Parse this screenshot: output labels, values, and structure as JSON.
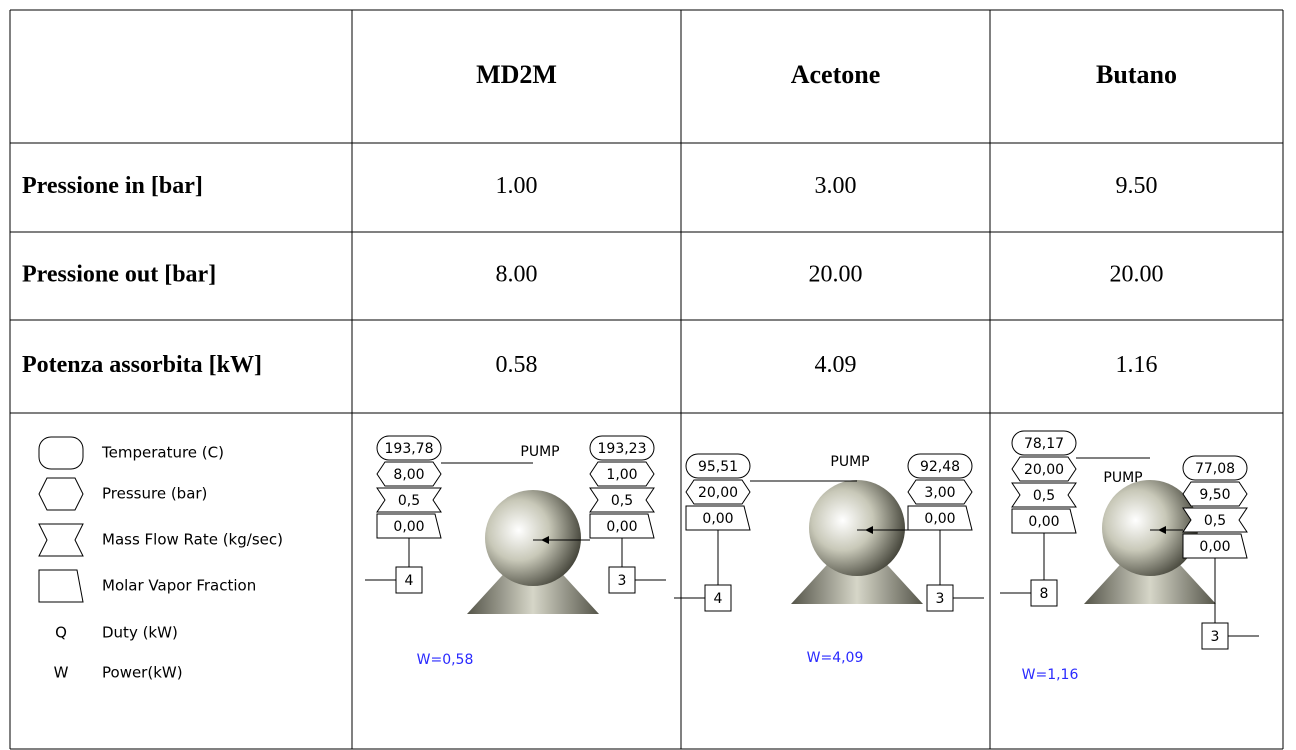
{
  "table": {
    "header": [
      "MD2M",
      "Acetone",
      "Butano"
    ],
    "rows": [
      {
        "label": "Pressione in [bar]",
        "values": [
          "1.00",
          "3.00",
          "9.50"
        ]
      },
      {
        "label": "Pressione out [bar]",
        "values": [
          "8.00",
          "20.00",
          "20.00"
        ]
      },
      {
        "label": "Potenza assorbita [kW]",
        "values": [
          "0.58",
          "4.09",
          "1.16"
        ]
      }
    ]
  },
  "legend": {
    "shapes": [
      "Temperature (C)",
      "Pressure (bar)",
      "Mass Flow Rate (kg/sec)",
      "Molar Vapor Fraction"
    ],
    "letters": [
      {
        "symbol": "Q",
        "label": "Duty (kW)"
      },
      {
        "symbol": "W",
        "label": "Power(kW)"
      }
    ]
  },
  "diagrams": [
    {
      "pump": "PUMP",
      "power": "W=0,58",
      "outlet": {
        "temperature": "193,78",
        "pressure": "8,00",
        "mass_flow": "0,5",
        "vapor_fraction": "0,00",
        "stream": "4"
      },
      "inlet": {
        "temperature": "193,23",
        "pressure": "1,00",
        "mass_flow": "0,5",
        "vapor_fraction": "0,00",
        "stream": "3"
      }
    },
    {
      "pump": "PUMP",
      "power": "W=4,09",
      "outlet": {
        "temperature": "95,51",
        "pressure": "20,00",
        "vapor_fraction": "0,00",
        "stream": "4"
      },
      "inlet": {
        "temperature": "92,48",
        "pressure": "3,00",
        "vapor_fraction": "0,00",
        "stream": "3"
      }
    },
    {
      "pump": "PUMP",
      "power": "W=1,16",
      "outlet": {
        "temperature": "78,17",
        "pressure": "20,00",
        "mass_flow": "0,5",
        "vapor_fraction": "0,00",
        "stream": "8"
      },
      "inlet": {
        "temperature": "77,08",
        "pressure": "9,50",
        "mass_flow": "0,5",
        "vapor_fraction": "0,00",
        "stream": "3"
      }
    }
  ]
}
